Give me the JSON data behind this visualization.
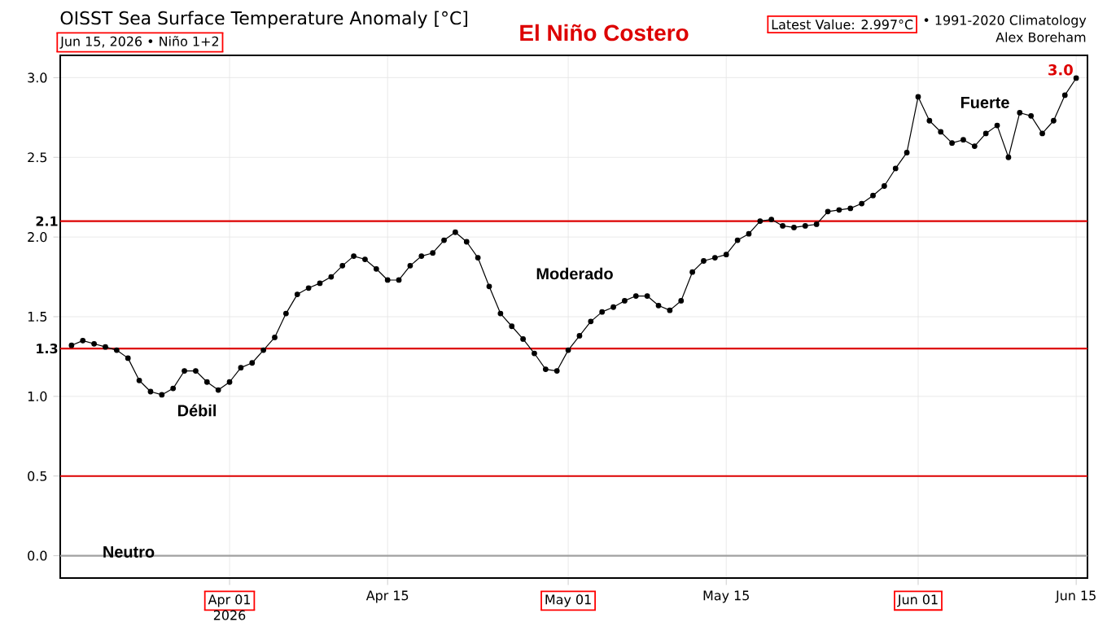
{
  "chart_data": {
    "type": "line",
    "title": "OISST Sea Surface Temperature Anomaly [°C]",
    "subtitle": "Jun 15, 2026 • Niño 1+2",
    "annotations": [
      "El Niño Costero",
      "Latest Value: 2.997°C",
      "• 1991-2020 Climatology",
      "Alex Boreham",
      "2026",
      "Débil",
      "Moderado",
      "Fuerte",
      "Neutro"
    ],
    "x": [
      "2026-03-18",
      "2026-03-19",
      "2026-03-20",
      "2026-03-21",
      "2026-03-22",
      "2026-03-23",
      "2026-03-24",
      "2026-03-25",
      "2026-03-26",
      "2026-03-27",
      "2026-03-28",
      "2026-03-29",
      "2026-03-30",
      "2026-03-31",
      "2026-04-01",
      "2026-04-02",
      "2026-04-03",
      "2026-04-04",
      "2026-04-05",
      "2026-04-06",
      "2026-04-07",
      "2026-04-08",
      "2026-04-09",
      "2026-04-10",
      "2026-04-11",
      "2026-04-12",
      "2026-04-13",
      "2026-04-14",
      "2026-04-15",
      "2026-04-16",
      "2026-04-17",
      "2026-04-18",
      "2026-04-19",
      "2026-04-20",
      "2026-04-21",
      "2026-04-22",
      "2026-04-23",
      "2026-04-24",
      "2026-04-25",
      "2026-04-26",
      "2026-04-27",
      "2026-04-28",
      "2026-04-29",
      "2026-04-30",
      "2026-05-01",
      "2026-05-02",
      "2026-05-03",
      "2026-05-04",
      "2026-05-05",
      "2026-05-06",
      "2026-05-07",
      "2026-05-08",
      "2026-05-09",
      "2026-05-10",
      "2026-05-11",
      "2026-05-12",
      "2026-05-13",
      "2026-05-14",
      "2026-05-15",
      "2026-05-16",
      "2026-05-17",
      "2026-05-18",
      "2026-05-19",
      "2026-05-20",
      "2026-05-21",
      "2026-05-22",
      "2026-05-23",
      "2026-05-24",
      "2026-05-25",
      "2026-05-26",
      "2026-05-27",
      "2026-05-28",
      "2026-05-29",
      "2026-05-30",
      "2026-05-31",
      "2026-06-01",
      "2026-06-02",
      "2026-06-03",
      "2026-06-04",
      "2026-06-05",
      "2026-06-06",
      "2026-06-07",
      "2026-06-08",
      "2026-06-09",
      "2026-06-10",
      "2026-06-11",
      "2026-06-12",
      "2026-06-13",
      "2026-06-14",
      "2026-06-15"
    ],
    "series": [
      {
        "color": "#000000",
        "values": [
          1.32,
          1.35,
          1.33,
          1.31,
          1.29,
          1.24,
          1.1,
          1.03,
          1.01,
          1.05,
          1.16,
          1.16,
          1.09,
          1.04,
          1.09,
          1.18,
          1.21,
          1.29,
          1.37,
          1.52,
          1.64,
          1.68,
          1.71,
          1.75,
          1.82,
          1.88,
          1.86,
          1.8,
          1.73,
          1.73,
          1.82,
          1.88,
          1.9,
          1.98,
          2.03,
          1.97,
          1.87,
          1.69,
          1.52,
          1.44,
          1.36,
          1.27,
          1.17,
          1.16,
          1.29,
          1.38,
          1.47,
          1.53,
          1.56,
          1.6,
          1.63,
          1.63,
          1.57,
          1.54,
          1.6,
          1.78,
          1.85,
          1.87,
          1.89,
          1.98,
          2.02,
          2.1,
          2.11,
          2.07,
          2.06,
          2.07,
          2.08,
          2.16,
          2.17,
          2.18,
          2.21,
          2.26,
          2.32,
          2.43,
          2.53,
          2.88,
          2.73,
          2.66,
          2.59,
          2.61,
          2.57,
          2.65,
          2.7,
          2.5,
          2.78,
          2.76,
          2.65,
          2.73,
          2.89,
          2.997
        ],
        "value_labels": [
          null,
          null,
          null,
          null,
          null,
          null,
          null,
          null,
          null,
          null,
          null,
          null,
          null,
          null,
          null,
          null,
          null,
          null,
          null,
          null,
          null,
          null,
          null,
          null,
          null,
          null,
          null,
          null,
          null,
          null,
          null,
          null,
          null,
          null,
          null,
          null,
          null,
          null,
          null,
          null,
          null,
          null,
          null,
          null,
          null,
          null,
          null,
          null,
          null,
          null,
          null,
          null,
          null,
          null,
          null,
          null,
          null,
          null,
          null,
          null,
          null,
          null,
          null,
          null,
          null,
          null,
          null,
          null,
          null,
          null,
          null,
          null,
          null,
          null,
          null,
          null,
          null,
          null,
          null,
          null,
          null,
          null,
          null,
          null,
          null,
          null,
          null,
          null,
          null,
          "3.0"
        ]
      }
    ],
    "xlim": [
      "2026-03-17",
      "2026-06-16"
    ],
    "xticks": [
      {
        "value": "2026-04-01",
        "label": "Apr 01"
      },
      {
        "value": "2026-04-15",
        "label": "Apr 15"
      },
      {
        "value": "2026-05-01",
        "label": "May 01"
      },
      {
        "value": "2026-05-15",
        "label": "May 15"
      },
      {
        "value": "2026-06-01",
        "label": "Jun 01"
      },
      {
        "value": "2026-06-15",
        "label": "Jun 15"
      }
    ],
    "ylim": [
      -0.14,
      3.14
    ],
    "yticks": [
      {
        "value": 0,
        "label": "0.0"
      },
      {
        "value": 0.5,
        "label": "0.5"
      },
      {
        "value": 1,
        "label": "1.0"
      },
      {
        "value": 1.5,
        "label": "1.5"
      },
      {
        "value": 2,
        "label": "2.0"
      },
      {
        "value": 2.5,
        "label": "2.5"
      },
      {
        "value": 3,
        "label": "3.0"
      }
    ],
    "ref_lines": [
      {
        "axis": "y",
        "value": 2.1,
        "label": "2.1",
        "color": "#dd0000"
      },
      {
        "axis": "y",
        "value": 1.3,
        "label": "1.3",
        "color": "#dd0000"
      },
      {
        "axis": "y",
        "value": 0.5,
        "color": "#dd0000"
      },
      {
        "axis": "y",
        "value": 0,
        "color": "#a0a0a0"
      }
    ],
    "grid": true,
    "marker": "circle",
    "line_style": "solid"
  }
}
